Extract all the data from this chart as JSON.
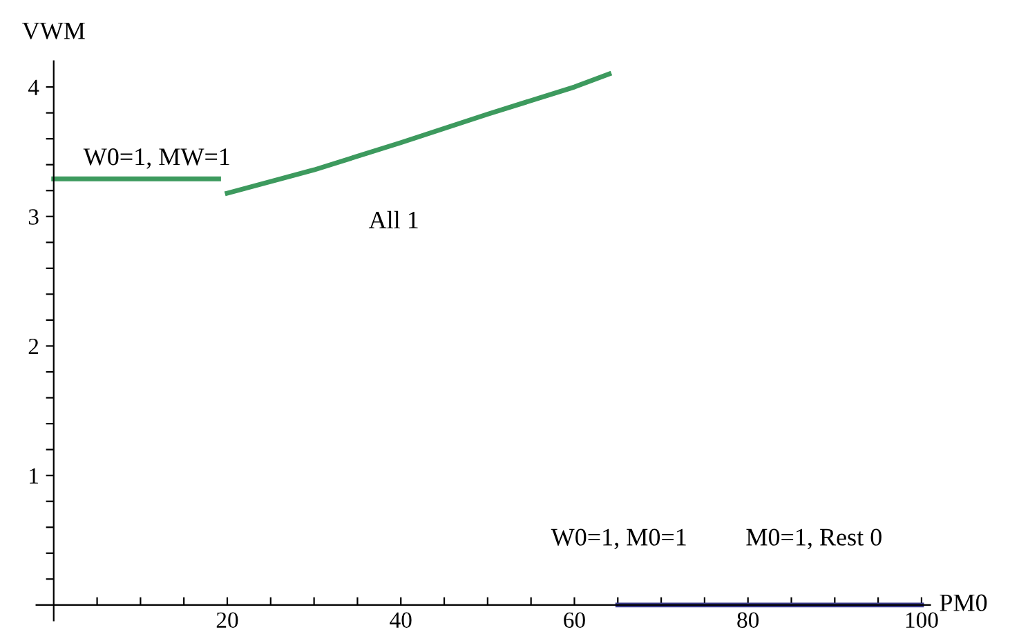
{
  "chart_data": {
    "type": "line",
    "xlabel": "PM0",
    "ylabel": "VWM",
    "xlim": [
      -2,
      101
    ],
    "ylim": [
      -0.12,
      4.2
    ],
    "xticks": [
      {
        "value": 5,
        "label": null
      },
      {
        "value": 10,
        "label": null
      },
      {
        "value": 15,
        "label": null
      },
      20,
      {
        "value": 25,
        "label": null
      },
      {
        "value": 30,
        "label": null
      },
      {
        "value": 35,
        "label": null
      },
      40,
      {
        "value": 45,
        "label": null
      },
      {
        "value": 50,
        "label": null
      },
      {
        "value": 55,
        "label": null
      },
      60,
      {
        "value": 65,
        "label": null
      },
      {
        "value": 70,
        "label": null
      },
      {
        "value": 75,
        "label": null
      },
      80,
      {
        "value": 85,
        "label": null
      },
      {
        "value": 90,
        "label": null
      },
      {
        "value": 95,
        "label": null
      },
      100
    ],
    "yticks": [
      {
        "value": 0.2,
        "label": null
      },
      {
        "value": 0.4,
        "label": null
      },
      {
        "value": 0.6,
        "label": null
      },
      {
        "value": 0.8,
        "label": null
      },
      1,
      {
        "value": 1.2,
        "label": null
      },
      {
        "value": 1.4,
        "label": null
      },
      {
        "value": 1.6,
        "label": null
      },
      {
        "value": 1.8,
        "label": null
      },
      2,
      {
        "value": 2.2,
        "label": null
      },
      {
        "value": 2.4,
        "label": null
      },
      {
        "value": 2.6,
        "label": null
      },
      {
        "value": 2.8,
        "label": null
      },
      3,
      {
        "value": 3.2,
        "label": null
      },
      {
        "value": 3.4,
        "label": null
      },
      {
        "value": 3.6,
        "label": null
      },
      {
        "value": 3.8,
        "label": null
      },
      4
    ],
    "series": [
      {
        "color": "#3d9a5e",
        "x": [
          0,
          19
        ],
        "values": [
          3.29,
          3.29
        ]
      },
      {
        "color": "#3d9a5e",
        "x": [
          20,
          30,
          40,
          50,
          60,
          64
        ],
        "values": [
          3.18,
          3.36,
          3.57,
          3.79,
          4.0,
          4.1
        ]
      },
      {
        "color": "#3b3b8c",
        "x": [
          65,
          100
        ],
        "values": [
          0,
          0
        ]
      }
    ],
    "annotations": [
      "W0=1, MW=1",
      "All 1",
      "W0=1, M0=1",
      "M0=1, Rest 0"
    ],
    "grid": false,
    "legend": false,
    "marker": "none",
    "line_style": "solid"
  }
}
